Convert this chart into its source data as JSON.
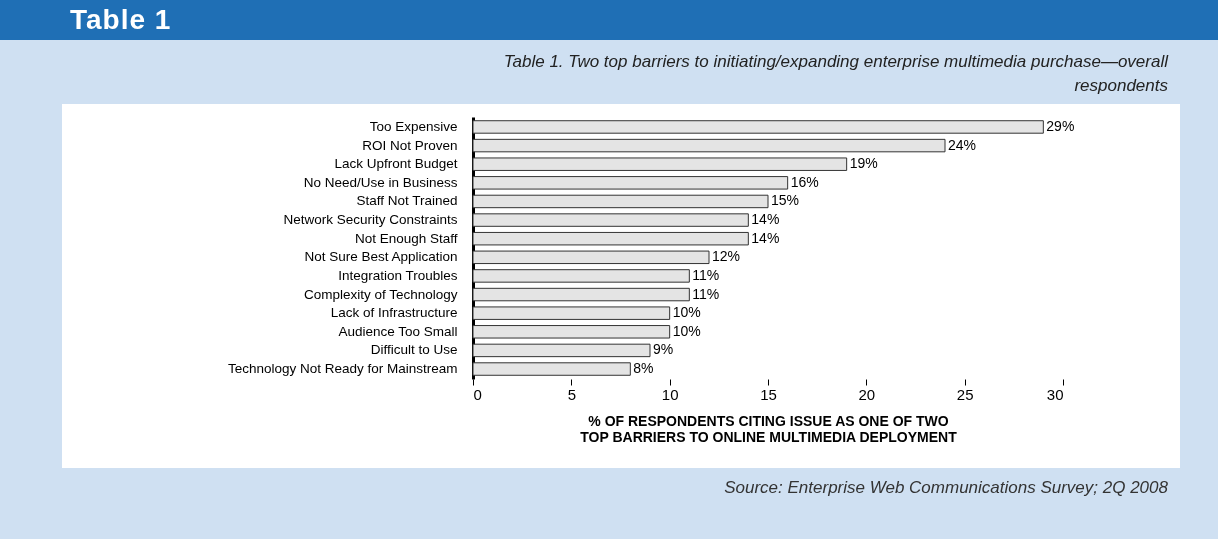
{
  "chart_data": {
    "type": "bar",
    "orientation": "horizontal",
    "title": "Table 1",
    "subtitle": "Table 1. Two top barriers to initiating/expanding enterprise multimedia purchase—overall respondents",
    "categories": [
      "Too Expensive",
      "ROI Not Proven",
      "Lack Upfront Budget",
      "No Need/Use in Business",
      "Staff Not Trained",
      "Network Security Constraints",
      "Not Enough Staff",
      "Not Sure Best Application",
      "Integration Troubles",
      "Complexity of Technology",
      "Lack of Infrastructure",
      "Audience Too Small",
      "Difficult to Use",
      "Technology Not Ready for Mainstream"
    ],
    "values": [
      29,
      24,
      19,
      16,
      15,
      14,
      14,
      12,
      11,
      11,
      10,
      10,
      9,
      8
    ],
    "value_labels": [
      "29%",
      "24%",
      "19%",
      "16%",
      "15%",
      "14%",
      "14%",
      "12%",
      "11%",
      "11%",
      "10%",
      "10%",
      "9%",
      "8%"
    ],
    "color": "#e4e4e4",
    "xlim": [
      0,
      30
    ],
    "xticks": [
      0,
      5,
      10,
      15,
      20,
      25,
      30
    ],
    "grid": false,
    "xlabel": "% OF RESPONDENTS CITING ISSUE AS ONE OF TWO TOP BARRIERS TO ONLINE MULTIMEDIA DEPLOYMENT",
    "annotations": [
      "Source: Enterprise Web Communications Survey; 2Q 2008"
    ]
  }
}
